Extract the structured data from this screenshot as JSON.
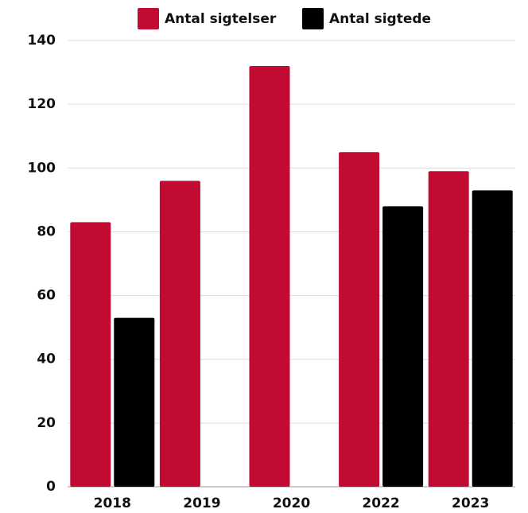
{
  "chart_data": {
    "type": "bar",
    "categories": [
      "2018",
      "2019",
      "2020",
      "2022",
      "2023"
    ],
    "series": [
      {
        "name": "Antal sigtelser",
        "color": "#c20b32",
        "values": [
          83,
          96,
          132,
          105,
          99
        ]
      },
      {
        "name": "Antal sigtede",
        "color": "#000000",
        "values": [
          53,
          null,
          null,
          88,
          93
        ]
      }
    ],
    "ylim": [
      0,
      140
    ],
    "yticks": [
      0,
      20,
      40,
      60,
      80,
      100,
      120,
      140
    ],
    "grid": true,
    "legend": "top"
  }
}
